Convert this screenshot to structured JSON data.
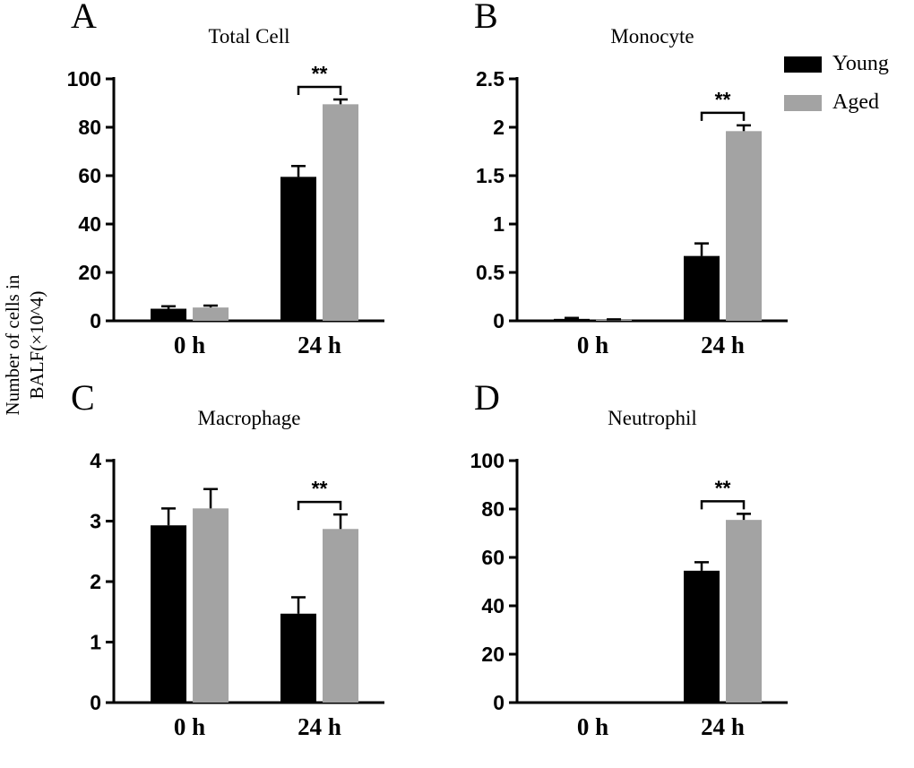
{
  "figure": {
    "ylabel_line1": "Number of cells in",
    "ylabel_line2": "BALF(×10^4)",
    "background": "#ffffff",
    "legend_position": "top-right",
    "grid": false
  },
  "legend": {
    "items": [
      {
        "label": "Young",
        "color": "#000000"
      },
      {
        "label": "Aged",
        "color": "#a3a3a3"
      }
    ]
  },
  "chart_data": [
    {
      "type": "bar",
      "panel": "A",
      "title": "Total Cell",
      "categories": [
        "0 h",
        "24 h"
      ],
      "ylim": [
        0,
        100
      ],
      "yticks": [
        0,
        20,
        40,
        60,
        80,
        100
      ],
      "series": [
        {
          "name": "Young",
          "color": "#000000",
          "values": [
            5.0,
            59.5
          ],
          "errors": [
            1.0,
            4.5
          ]
        },
        {
          "name": "Aged",
          "color": "#a3a3a3",
          "values": [
            5.5,
            89.5
          ],
          "errors": [
            0.8,
            2.0
          ]
        }
      ],
      "significance": [
        {
          "category": "24 h",
          "label": "**"
        }
      ]
    },
    {
      "type": "bar",
      "panel": "B",
      "title": "Monocyte",
      "categories": [
        "0 h",
        "24 h"
      ],
      "ylim": [
        0,
        2.5
      ],
      "yticks": [
        0,
        0.5,
        1,
        1.5,
        2,
        2.5
      ],
      "series": [
        {
          "name": "Young",
          "color": "#000000",
          "values": [
            0.02,
            0.67
          ],
          "errors": [
            0.01,
            0.13
          ]
        },
        {
          "name": "Aged",
          "color": "#a3a3a3",
          "values": [
            0.01,
            1.96
          ],
          "errors": [
            0.005,
            0.06
          ]
        }
      ],
      "significance": [
        {
          "category": "24 h",
          "label": "**"
        }
      ]
    },
    {
      "type": "bar",
      "panel": "C",
      "title": "Macrophage",
      "categories": [
        "0 h",
        "24 h"
      ],
      "ylim": [
        0,
        4
      ],
      "yticks": [
        0,
        1,
        2,
        3,
        4
      ],
      "series": [
        {
          "name": "Young",
          "color": "#000000",
          "values": [
            2.93,
            1.47
          ],
          "errors": [
            0.28,
            0.27
          ]
        },
        {
          "name": "Aged",
          "color": "#a3a3a3",
          "values": [
            3.21,
            2.87
          ],
          "errors": [
            0.32,
            0.24
          ]
        }
      ],
      "significance": [
        {
          "category": "24 h",
          "label": "**"
        }
      ]
    },
    {
      "type": "bar",
      "panel": "D",
      "title": "Neutrophil",
      "categories": [
        "0 h",
        "24 h"
      ],
      "ylim": [
        0,
        100
      ],
      "yticks": [
        0,
        20,
        40,
        60,
        80,
        100
      ],
      "series": [
        {
          "name": "Young",
          "color": "#000000",
          "values": [
            0,
            54.5
          ],
          "errors": [
            0,
            3.5
          ]
        },
        {
          "name": "Aged",
          "color": "#a3a3a3",
          "values": [
            0,
            75.5
          ],
          "errors": [
            0,
            2.5
          ]
        }
      ],
      "significance": [
        {
          "category": "24 h",
          "label": "**"
        }
      ]
    }
  ]
}
